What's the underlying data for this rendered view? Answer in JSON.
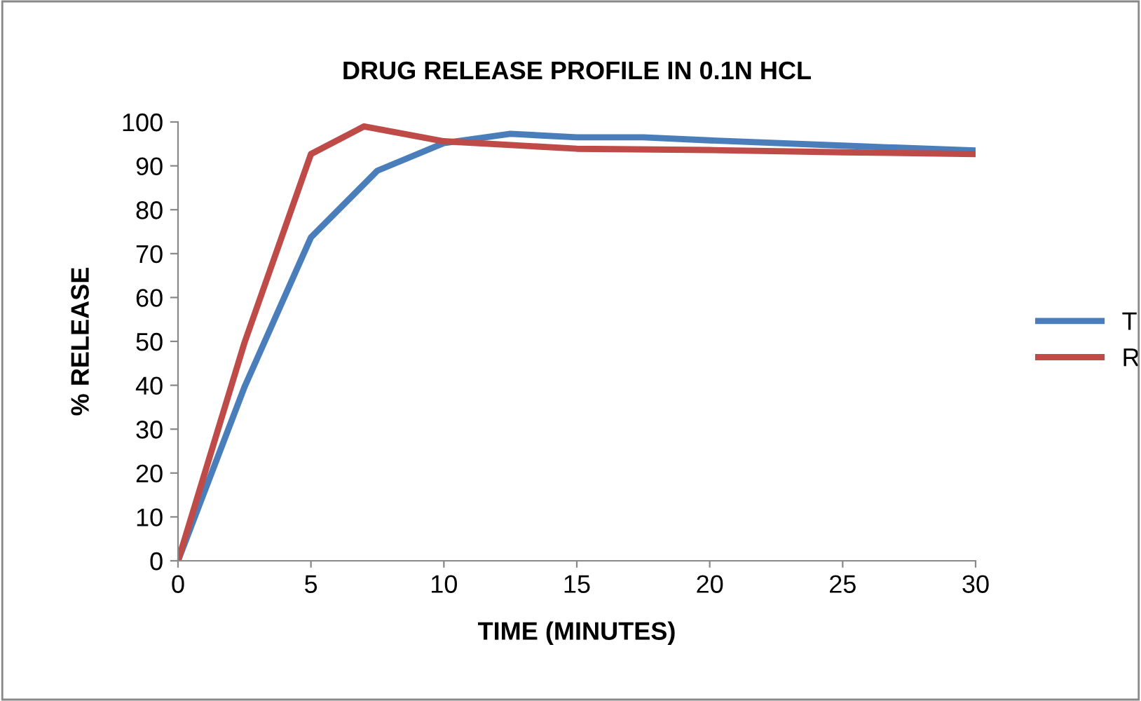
{
  "chart_data": {
    "type": "line",
    "title": "DRUG RELEASE PROFILE IN 0.1N HCL",
    "xlabel": "TIME (MINUTES)",
    "ylabel": "% RELEASE",
    "series": [
      {
        "name": "T",
        "color": "#4a7ebb",
        "x": [
          0,
          2.5,
          5,
          7.5,
          10,
          12.5,
          15,
          17.5,
          20,
          25,
          30
        ],
        "values": [
          0,
          39.6,
          73.7,
          88.9,
          95.2,
          97.3,
          96.5,
          96.5,
          95.8,
          94.6,
          93.5
        ]
      },
      {
        "name": "R",
        "color": "#be4b48",
        "x": [
          0,
          2.5,
          5,
          7,
          10,
          15,
          20,
          25,
          30
        ],
        "values": [
          0,
          49.7,
          92.7,
          99,
          95.6,
          93.9,
          93.6,
          93.1,
          92.7
        ]
      }
    ],
    "xlim": [
      0,
      30
    ],
    "xticks": [
      0,
      5,
      10,
      15,
      20,
      25,
      30
    ],
    "ylim": [
      0,
      100
    ],
    "yticks": [
      0,
      10,
      20,
      30,
      40,
      50,
      60,
      70,
      80,
      90,
      100
    ],
    "grid": false,
    "legend": "right",
    "marker": "none",
    "line_style": "solid"
  }
}
